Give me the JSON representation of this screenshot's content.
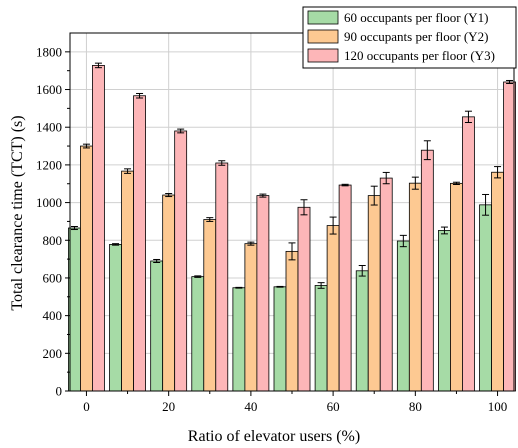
{
  "chart_data": {
    "type": "bar",
    "categories": [
      "0",
      "10",
      "20",
      "30",
      "40",
      "50",
      "60",
      "70",
      "80",
      "90",
      "100"
    ],
    "x_tick_labels": [
      "0",
      "20",
      "40",
      "60",
      "80",
      "100"
    ],
    "y_tick_labels": [
      "0",
      "200",
      "400",
      "600",
      "800",
      "1000",
      "1200",
      "1400",
      "1600",
      "1800"
    ],
    "xlabel": "Ratio of elevator users (%)",
    "ylabel": "Total clearance time (TCT) (s)",
    "ylim": [
      0,
      1900
    ],
    "grid": true,
    "legend_position": "top-right",
    "series": [
      {
        "name": "60 occupants per floor (Y1)",
        "color": "#a6dba6",
        "values": [
          865,
          778,
          690,
          607,
          548,
          553,
          560,
          638,
          796,
          852,
          988
        ],
        "errors": [
          8,
          4,
          8,
          4,
          2,
          2,
          15,
          28,
          30,
          18,
          55
        ]
      },
      {
        "name": "90 occupants per floor (Y2)",
        "color": "#fdc992",
        "values": [
          1300,
          1167,
          1040,
          910,
          782,
          741,
          878,
          1037,
          1103,
          1102,
          1161
        ],
        "errors": [
          10,
          12,
          8,
          10,
          8,
          45,
          45,
          50,
          32,
          6,
          30
        ]
      },
      {
        "name": "120 occupants per floor (Y3)",
        "color": "#fdb6b8",
        "values": [
          1728,
          1567,
          1380,
          1210,
          1037,
          975,
          1093,
          1130,
          1278,
          1455,
          1640
        ],
        "errors": [
          12,
          12,
          10,
          12,
          8,
          40,
          4,
          30,
          50,
          30,
          8
        ]
      }
    ]
  }
}
